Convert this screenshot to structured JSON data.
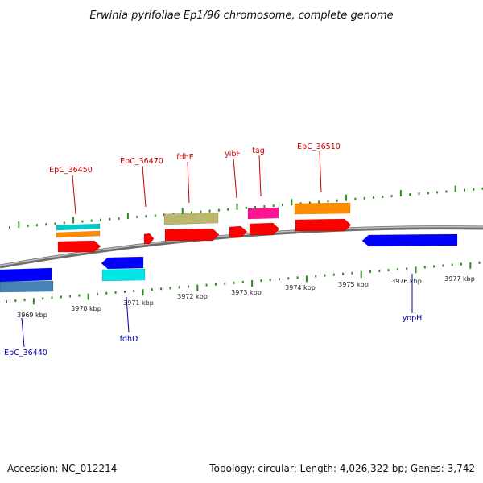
{
  "title": "Erwinia pyrifoliae Ep1/96 chromosome, complete genome",
  "footer": {
    "accession": "Accession: NC_012214",
    "summary": "Topology: circular; Length: 4,026,322 bp; Genes: 3,742"
  },
  "colors": {
    "backbone": "#8a8a8a",
    "tick": "#2e8b1e",
    "label_forward": "#cc0000",
    "label_reverse": "#0000aa"
  },
  "ticks": [
    {
      "label": "3969 kbp"
    },
    {
      "label": "3970 kbp"
    },
    {
      "label": "3971 kbp"
    },
    {
      "label": "3972 kbp"
    },
    {
      "label": "3973 kbp"
    },
    {
      "label": "3974 kbp"
    },
    {
      "label": "3975 kbp"
    },
    {
      "label": "3976 kbp"
    },
    {
      "label": "3977 kbp"
    }
  ],
  "genes": [
    {
      "name": "EpC_36450",
      "strand": "forward",
      "color": "#ff0000"
    },
    {
      "name": "EpC_36470",
      "strand": "forward",
      "color": "#ff0000"
    },
    {
      "name": "fdhE",
      "strand": "forward",
      "color": "#ff0000"
    },
    {
      "name": "yibF",
      "strand": "forward",
      "color": "#ff0000"
    },
    {
      "name": "tag",
      "strand": "forward",
      "color": "#ff0000"
    },
    {
      "name": "EpC_36510",
      "strand": "forward",
      "color": "#ff0000"
    },
    {
      "name": "EpC_36440",
      "strand": "reverse",
      "color": "#0000ff"
    },
    {
      "name": "fdhD",
      "strand": "reverse",
      "color": "#0000ff"
    },
    {
      "name": "yopH",
      "strand": "reverse",
      "color": "#0000ff"
    }
  ],
  "features": [
    {
      "name": "EpC_36450-feature-cyan",
      "color": "#00cccc"
    },
    {
      "name": "EpC_36450-feature-orange",
      "color": "#ff8c00"
    },
    {
      "name": "fdhE-feature-khaki",
      "color": "#bdb76b"
    },
    {
      "name": "tag-feature-magenta",
      "color": "#ff1493"
    },
    {
      "name": "EpC_36510-feature-orange",
      "color": "#ff8c00"
    },
    {
      "name": "EpC_36440-feature-steelblue",
      "color": "#4682b4"
    },
    {
      "name": "fdhD-feature-cyan",
      "color": "#00e5e5"
    }
  ]
}
